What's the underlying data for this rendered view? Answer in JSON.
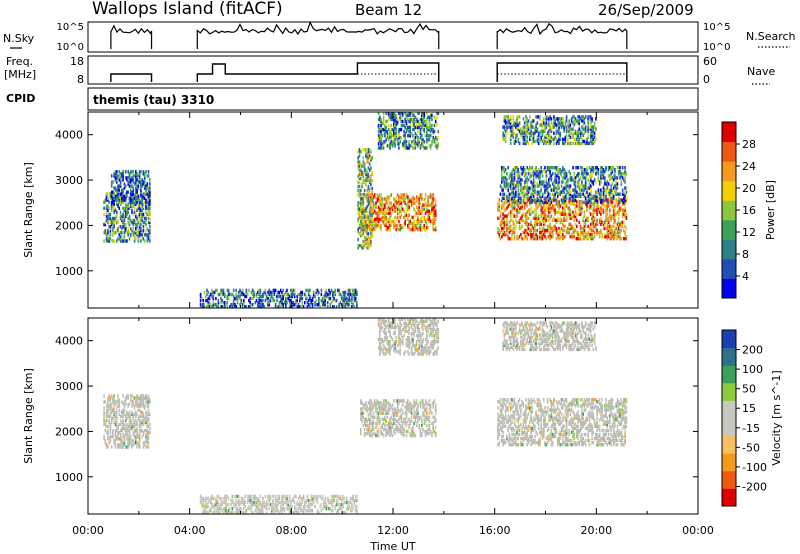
{
  "header": {
    "station": "Wallops Island (fitACF)",
    "beam": "Beam 12",
    "date": "26/Sep/2009"
  },
  "mini_panels": {
    "nsky_label": "N.Sky",
    "nsearch_label": "N.Search",
    "freq_label_1": "Freq.",
    "freq_label_2": "[MHz]",
    "nave_label": "Nave",
    "cpid_label": "CPID",
    "cpid_value": "themis (tau) 3310",
    "noise_ticks": [
      "10^5",
      "10^0"
    ],
    "freq_ticks": [
      "18",
      "8"
    ],
    "nave_ticks": [
      "60",
      "0"
    ]
  },
  "colors": {
    "power_scale": [
      "#0000ee",
      "#1f4fb4",
      "#2e7f8a",
      "#3aa05a",
      "#8cc63c",
      "#f0d000",
      "#f59a1a",
      "#ee5a12",
      "#e00000"
    ],
    "velocity_scale": [
      "#e00000",
      "#f05a10",
      "#f59a1a",
      "#f5c060",
      "#c8c8c0",
      "#c8c8c0",
      "#8ccc3c",
      "#3aa05a",
      "#2e6f8a",
      "#1a3fb0"
    ],
    "ground_scatter": "#bdbdb6"
  },
  "chart_data": [
    {
      "type": "heatmap",
      "name": "power-panel",
      "x_unit": "hours UT",
      "xlim": [
        0,
        24
      ],
      "ylim": [
        180,
        4500
      ],
      "ylabel": "Slant Range [km]",
      "yticks": [
        "1000",
        "2000",
        "3000",
        "4000"
      ],
      "colorbar_label": "Power [dB]",
      "colorbar_ticks": [
        "4",
        "8",
        "12",
        "16",
        "20",
        "24",
        "28"
      ],
      "colorbar_range": [
        0,
        30
      ],
      "scatter_regions": [
        {
          "t0": 0.6,
          "t1": 2.4,
          "r0": 1650,
          "r1": 2700,
          "v": 10
        },
        {
          "t0": 0.9,
          "t1": 2.4,
          "r0": 2500,
          "r1": 3200,
          "v": 6
        },
        {
          "t0": 4.4,
          "t1": 10.6,
          "r0": 200,
          "r1": 600,
          "v": 7
        },
        {
          "t0": 10.7,
          "t1": 13.7,
          "r0": 1900,
          "r1": 2700,
          "v": 22
        },
        {
          "t0": 10.6,
          "t1": 11.2,
          "r0": 1500,
          "r1": 3700,
          "v": 14
        },
        {
          "t0": 11.4,
          "t1": 13.8,
          "r0": 3700,
          "r1": 4500,
          "v": 10
        },
        {
          "t0": 16.1,
          "t1": 21.2,
          "r0": 1700,
          "r1": 2600,
          "v": 22
        },
        {
          "t0": 16.2,
          "t1": 21.2,
          "r0": 2500,
          "r1": 3300,
          "v": 9
        },
        {
          "t0": 16.3,
          "t1": 20.0,
          "r0": 3800,
          "r1": 4400,
          "v": 10
        }
      ]
    },
    {
      "type": "heatmap",
      "name": "velocity-panel",
      "x_unit": "hours UT",
      "xlim": [
        0,
        24
      ],
      "ylim": [
        180,
        4500
      ],
      "xlabel": "Time UT",
      "ylabel": "Slant Range [km]",
      "xticks": [
        "00:00",
        "04:00",
        "08:00",
        "12:00",
        "16:00",
        "20:00",
        "00:00"
      ],
      "yticks": [
        "1000",
        "2000",
        "3000",
        "4000"
      ],
      "colorbar_label": "Velocity [m s^-1]",
      "colorbar_ticks": [
        "-200",
        "-100",
        "-50",
        "-15",
        "15",
        "50",
        "100",
        "200"
      ],
      "colorbar_range": [
        -250,
        250
      ],
      "scatter_regions": [
        {
          "t0": 0.6,
          "t1": 2.4,
          "r0": 1650,
          "r1": 2800,
          "v": 0
        },
        {
          "t0": 4.4,
          "t1": 10.6,
          "r0": 200,
          "r1": 600,
          "v": 20
        },
        {
          "t0": 10.7,
          "t1": 13.7,
          "r0": 1900,
          "r1": 2700,
          "v": 0
        },
        {
          "t0": 11.4,
          "t1": 13.8,
          "r0": 3700,
          "r1": 4500,
          "v": 0
        },
        {
          "t0": 16.1,
          "t1": 21.2,
          "r0": 1700,
          "r1": 2700,
          "v": 0
        },
        {
          "t0": 16.3,
          "t1": 20.0,
          "r0": 3800,
          "r1": 4400,
          "v": 0
        }
      ]
    }
  ]
}
